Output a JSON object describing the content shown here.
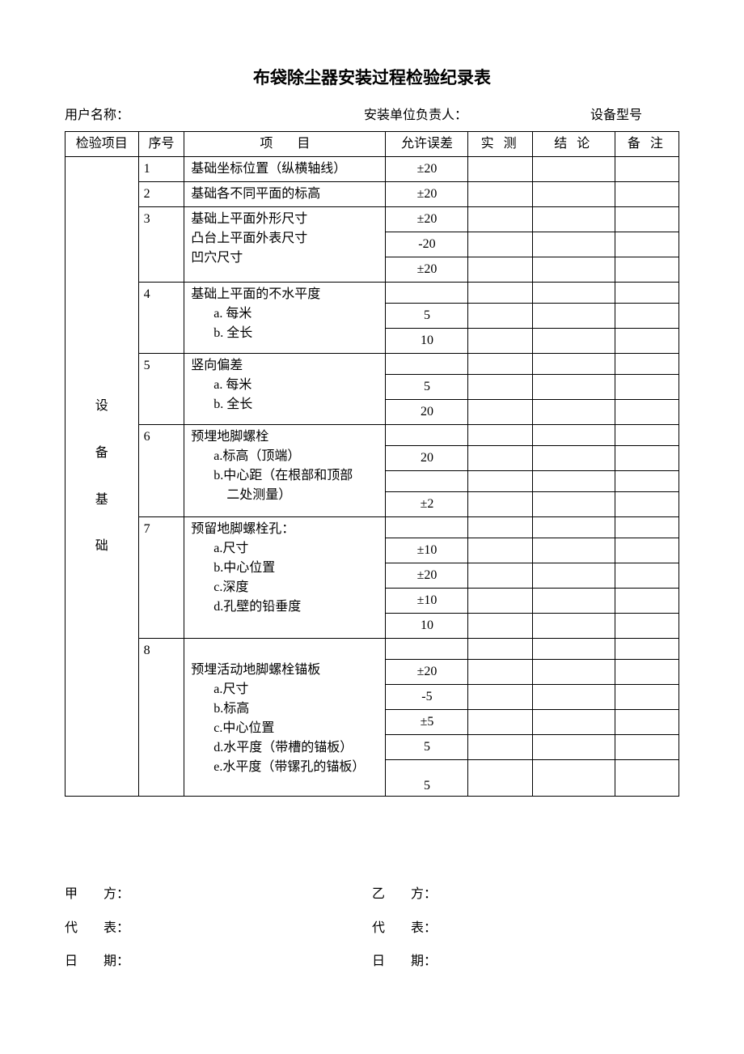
{
  "title": "布袋除尘器安装过程检验纪录表",
  "header": {
    "user_label": "用户名称：",
    "installer_label": "安装单位负责人：",
    "model_label": "设备型号"
  },
  "table_headers": {
    "category": "检验项目",
    "seq": "序号",
    "item": "项目",
    "tolerance": "允许误差",
    "measured": "实 测",
    "conclusion": "结 论",
    "note": "备 注"
  },
  "category_label": [
    "设",
    "备",
    "基",
    "础"
  ],
  "rows": [
    {
      "seq": "1",
      "item": "基础坐标位置（纵横轴线）",
      "tol": "±20"
    },
    {
      "seq": "2",
      "item": "基础各不同平面的标高",
      "tol": "±20"
    },
    {
      "seq": "3",
      "item": "基础上平面外形尺寸",
      "tol": "±20"
    },
    {
      "seq": "",
      "item": "凸台上平面外表尺寸",
      "tol": "-20"
    },
    {
      "seq": "",
      "item": "凹穴尺寸",
      "tol": "±20"
    },
    {
      "seq": "4",
      "item": "基础上平面的不水平度",
      "tol": ""
    },
    {
      "seq": "",
      "item": "a. 每米",
      "tol": "5",
      "indent": "indent1"
    },
    {
      "seq": "",
      "item": "b. 全长",
      "tol": "10",
      "indent": "indent1"
    },
    {
      "seq": "5",
      "item": "竖向偏差",
      "tol": ""
    },
    {
      "seq": "",
      "item": "a. 每米",
      "tol": "5",
      "indent": "indent1"
    },
    {
      "seq": "",
      "item": "b. 全长",
      "tol": "20",
      "indent": "indent1"
    },
    {
      "seq": "6",
      "item": "预埋地脚螺栓",
      "tol": ""
    },
    {
      "seq": "",
      "item": "a.标高（顶端）",
      "tol": "20",
      "indent": "indent1"
    },
    {
      "seq": "",
      "item": "b.中心距（在根部和顶部",
      "tol": "",
      "indent": "indent1"
    },
    {
      "seq": "",
      "item": "二处测量）",
      "tol": "±2",
      "indent": "indent2"
    }
  ],
  "group7": {
    "seq": "7",
    "lines": [
      "预留地脚螺栓孔：",
      "a.尺寸",
      "b.中心位置",
      "c.深度",
      "d.孔壁的铅垂度"
    ],
    "tols": [
      "",
      "±10",
      "±20",
      "±10",
      "10"
    ]
  },
  "group8": {
    "seq": "8",
    "lines": [
      "",
      "预埋活动地脚螺栓锚板",
      "a.尺寸",
      "b.标高",
      "c.中心位置",
      "d.水平度（带槽的锚板）",
      "e.水平度（带镙孔的锚板）"
    ],
    "lines_indent": [
      "",
      "",
      "indent1",
      "indent1",
      "indent1",
      "indent1",
      "indent1"
    ],
    "tols": [
      "",
      "±20",
      "-5",
      "±5",
      "5",
      "",
      "5"
    ],
    "merge56": true
  },
  "signatures": {
    "party_a": "甲　　方：",
    "party_b": "乙　　方：",
    "rep_a": "代　　表：",
    "rep_b": "代　　表：",
    "date_a": "日　　期：",
    "date_b": "日　　期："
  }
}
